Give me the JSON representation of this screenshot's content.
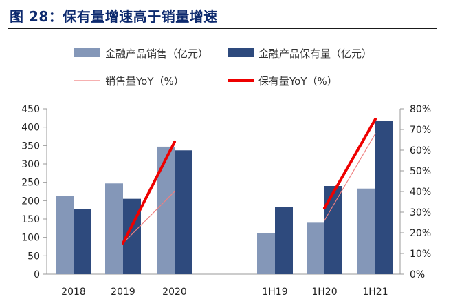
{
  "figure": {
    "title": "图 28：保有量增速高于销量增速"
  },
  "chart_data": {
    "type": "bar",
    "categories": [
      "2018",
      "2019",
      "2020",
      "",
      "1H19",
      "1H20",
      "1H21"
    ],
    "series": [
      {
        "name": "金融产品销售（亿元）",
        "kind": "bar",
        "axis": "left",
        "color": "#8497b8",
        "values": [
          212,
          247,
          347,
          null,
          112,
          140,
          233
        ]
      },
      {
        "name": "金融产品保有量（亿元）",
        "kind": "bar",
        "axis": "left",
        "color": "#2e4a7d",
        "values": [
          178,
          205,
          337,
          null,
          182,
          240,
          417
        ]
      },
      {
        "name": "销售量YoY（%）",
        "kind": "line",
        "axis": "right",
        "color": "#f08080",
        "values": [
          null,
          15,
          40,
          null,
          null,
          26,
          68
        ]
      },
      {
        "name": "保有量YoY（%）",
        "kind": "line",
        "axis": "right",
        "color": "#ee0000",
        "values": [
          null,
          15,
          64,
          null,
          null,
          32,
          75
        ]
      }
    ],
    "y_left": {
      "min": 0,
      "max": 450,
      "step": 50,
      "ticks": [
        "0",
        "50",
        "100",
        "150",
        "200",
        "250",
        "300",
        "350",
        "400",
        "450"
      ]
    },
    "y_right": {
      "min": 0,
      "max": 80,
      "step": 10,
      "ticks": [
        "0%",
        "10%",
        "20%",
        "30%",
        "40%",
        "50%",
        "60%",
        "70%",
        "80%"
      ]
    },
    "legend_position": "top",
    "grid": false
  }
}
